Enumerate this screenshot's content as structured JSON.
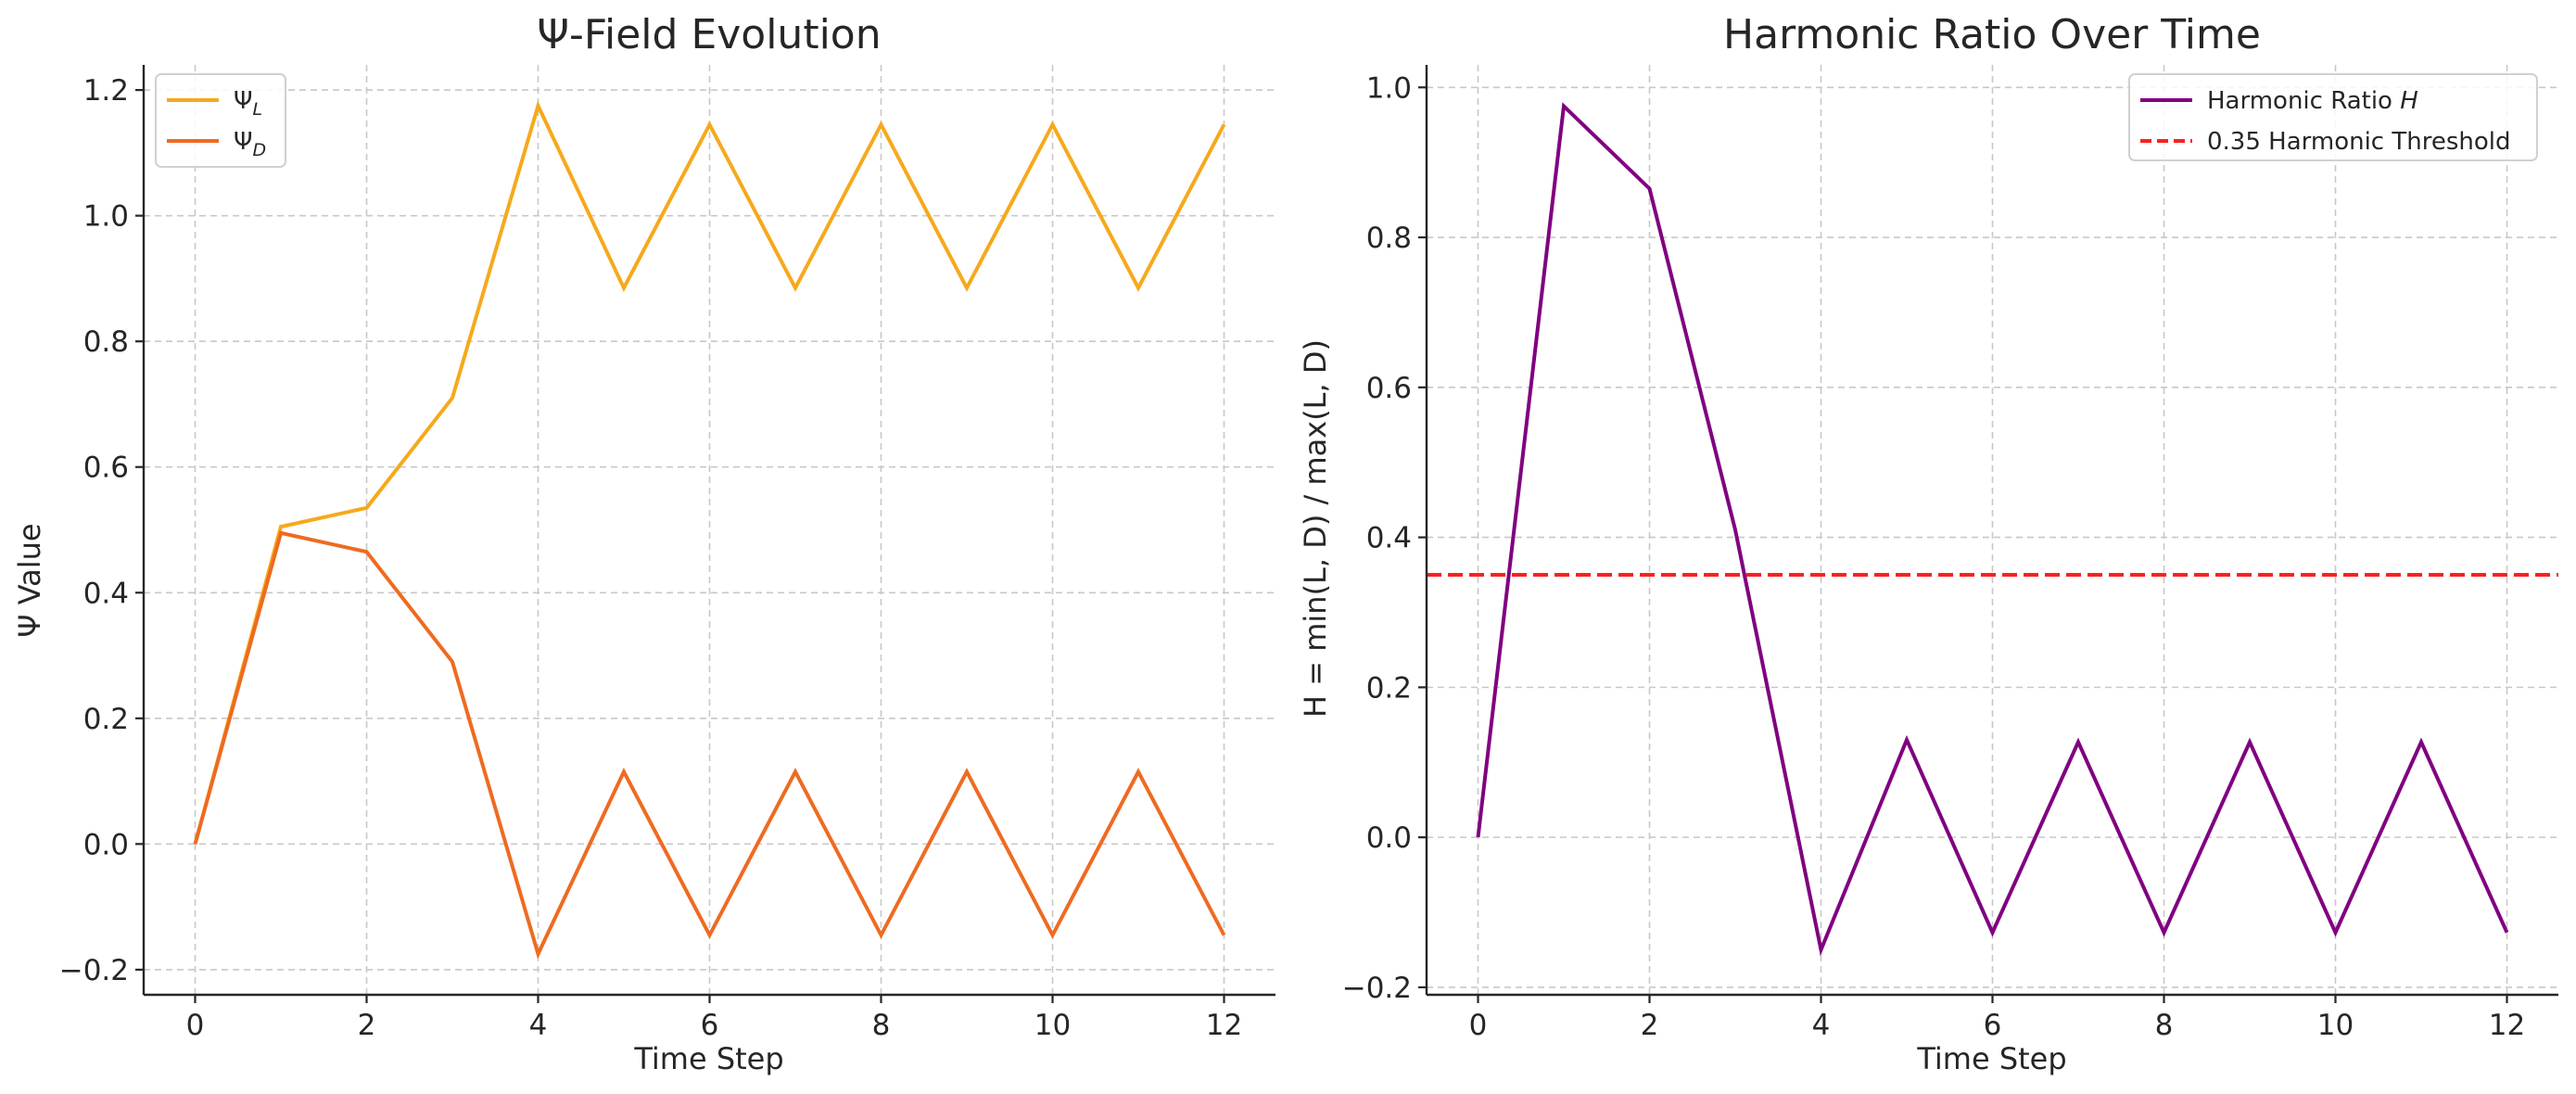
{
  "chart_data": [
    {
      "type": "line",
      "title": "Ψ-Field Evolution",
      "xlabel": "Time Step",
      "ylabel": "Ψ Value",
      "xlim": [
        -0.6,
        12.6
      ],
      "ylim": [
        -0.24,
        1.24
      ],
      "xticks": [
        0,
        2,
        4,
        6,
        8,
        10,
        12
      ],
      "yticks": [
        -0.2,
        0.0,
        0.2,
        0.4,
        0.6,
        0.8,
        1.0,
        1.2
      ],
      "ytick_labels": [
        "−0.2",
        "0.0",
        "0.2",
        "0.4",
        "0.6",
        "0.8",
        "1.0",
        "1.2"
      ],
      "grid": true,
      "legend_position": "upper-left",
      "x": [
        0,
        1,
        2,
        3,
        4,
        5,
        6,
        7,
        8,
        9,
        10,
        11,
        12
      ],
      "series": [
        {
          "name": "Ψ",
          "subscript": "L",
          "color": "#F6A91C",
          "values": [
            0.0,
            0.505,
            0.535,
            0.71,
            1.175,
            0.885,
            1.145,
            0.885,
            1.145,
            0.885,
            1.145,
            0.885,
            1.145
          ]
        },
        {
          "name": "Ψ",
          "subscript": "D",
          "color": "#EE6B21",
          "values": [
            0.0,
            0.495,
            0.465,
            0.29,
            -0.175,
            0.115,
            -0.145,
            0.115,
            -0.145,
            0.115,
            -0.145,
            0.115,
            -0.145
          ]
        }
      ]
    },
    {
      "type": "line",
      "title": "Harmonic Ratio Over Time",
      "xlabel": "Time Step",
      "ylabel": "H = min(L, D) / max(L, D)",
      "xlim": [
        -0.6,
        12.6
      ],
      "ylim": [
        -0.21,
        1.03
      ],
      "xticks": [
        0,
        2,
        4,
        6,
        8,
        10,
        12
      ],
      "yticks": [
        -0.2,
        0.0,
        0.2,
        0.4,
        0.6,
        0.8,
        1.0
      ],
      "ytick_labels": [
        "−0.2",
        "0.0",
        "0.2",
        "0.4",
        "0.6",
        "0.8",
        "1.0"
      ],
      "grid": true,
      "legend_position": "upper-right",
      "x": [
        0,
        1,
        2,
        3,
        4,
        5,
        6,
        7,
        8,
        9,
        10,
        11,
        12
      ],
      "series": [
        {
          "name": "Harmonic Ratio",
          "name_italic": "H",
          "color": "#800080",
          "values": [
            0.0,
            0.975,
            0.865,
            0.41,
            -0.15,
            0.13,
            -0.127,
            0.127,
            -0.127,
            0.127,
            -0.127,
            0.127,
            -0.127
          ]
        }
      ],
      "threshold": {
        "name": "0.35 Harmonic Threshold",
        "value": 0.35,
        "color": "#FF1F1F",
        "style": "dashed"
      }
    }
  ]
}
